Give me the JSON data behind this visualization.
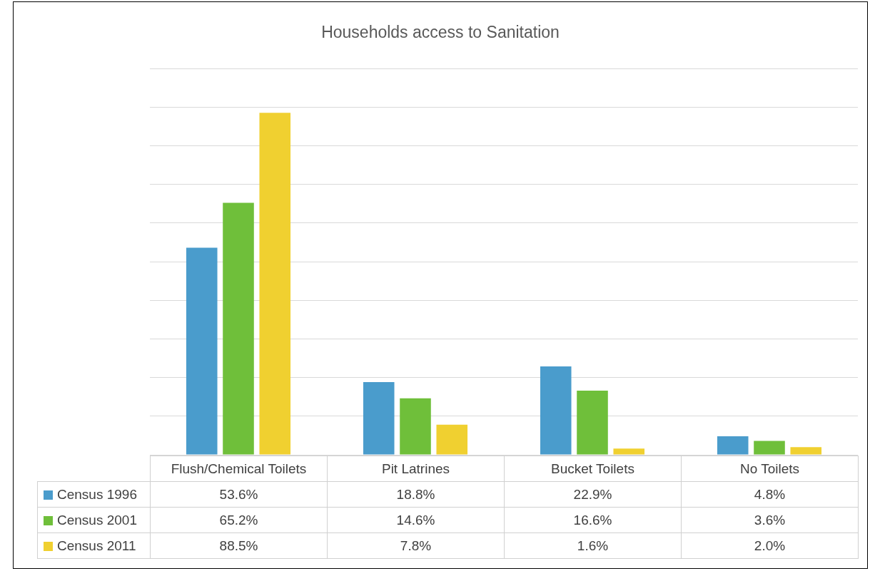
{
  "chart_data": {
    "type": "bar",
    "title": "Households access to Sanitation",
    "categories": [
      "Flush/Chemical Toilets",
      "Pit Latrines",
      "Bucket Toilets",
      "No Toilets"
    ],
    "series": [
      {
        "name": "Census 1996",
        "color": "#4a9ccc",
        "values": [
          53.6,
          18.8,
          22.9,
          4.8
        ],
        "value_labels": [
          "53.6%",
          "18.8%",
          "22.9%",
          "4.8%"
        ]
      },
      {
        "name": "Census 2001",
        "color": "#6fbf3a",
        "values": [
          65.2,
          14.6,
          16.6,
          3.6
        ],
        "value_labels": [
          "65.2%",
          "14.6%",
          "16.6%",
          "3.6%"
        ]
      },
      {
        "name": "Census 2011",
        "color": "#f0d030",
        "values": [
          88.5,
          7.8,
          1.6,
          2.0
        ],
        "value_labels": [
          "88.5%",
          "7.8%",
          "1.6%",
          "2.0%"
        ]
      }
    ],
    "ylim": [
      0,
      100
    ],
    "yticks": [
      {
        "value": 0,
        "label": null
      },
      {
        "value": 10,
        "label": null
      },
      {
        "value": 20,
        "label": null
      },
      {
        "value": 30,
        "label": null
      },
      {
        "value": 40,
        "label": null
      },
      {
        "value": 50,
        "label": null
      },
      {
        "value": 60,
        "label": null
      },
      {
        "value": 70,
        "label": null
      },
      {
        "value": 80,
        "label": null
      },
      {
        "value": 90,
        "label": null
      },
      {
        "value": 100,
        "label": null
      }
    ],
    "grid": "y",
    "legend": "bottom left",
    "tick_labels": "x"
  }
}
